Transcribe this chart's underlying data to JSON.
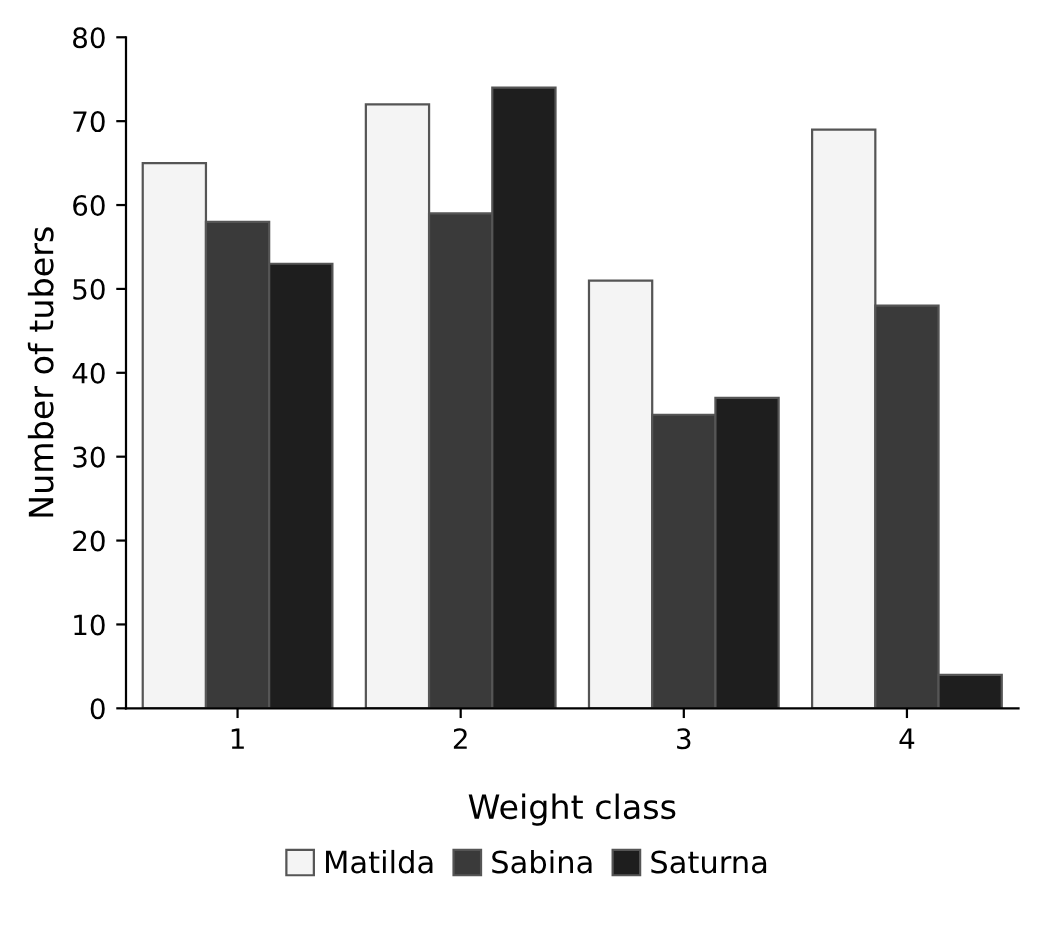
{
  "chart_data": {
    "type": "bar",
    "xlabel": "Weight class",
    "ylabel": "Number of tubers",
    "categories": [
      "1",
      "2",
      "3",
      "4"
    ],
    "series": [
      {
        "name": "Matilda",
        "color": "#f4f4f4",
        "values": [
          65,
          72,
          51,
          69
        ]
      },
      {
        "name": "Sabina",
        "color": "#3a3a3a",
        "values": [
          58,
          59,
          35,
          48
        ]
      },
      {
        "name": "Saturna",
        "color": "#1e1e1e",
        "values": [
          53,
          74,
          37,
          4
        ]
      }
    ],
    "ylim": [
      0,
      80
    ],
    "yticks": [
      0,
      10,
      20,
      30,
      40,
      50,
      60,
      70,
      80
    ],
    "grid": false,
    "legend": "bottom"
  }
}
